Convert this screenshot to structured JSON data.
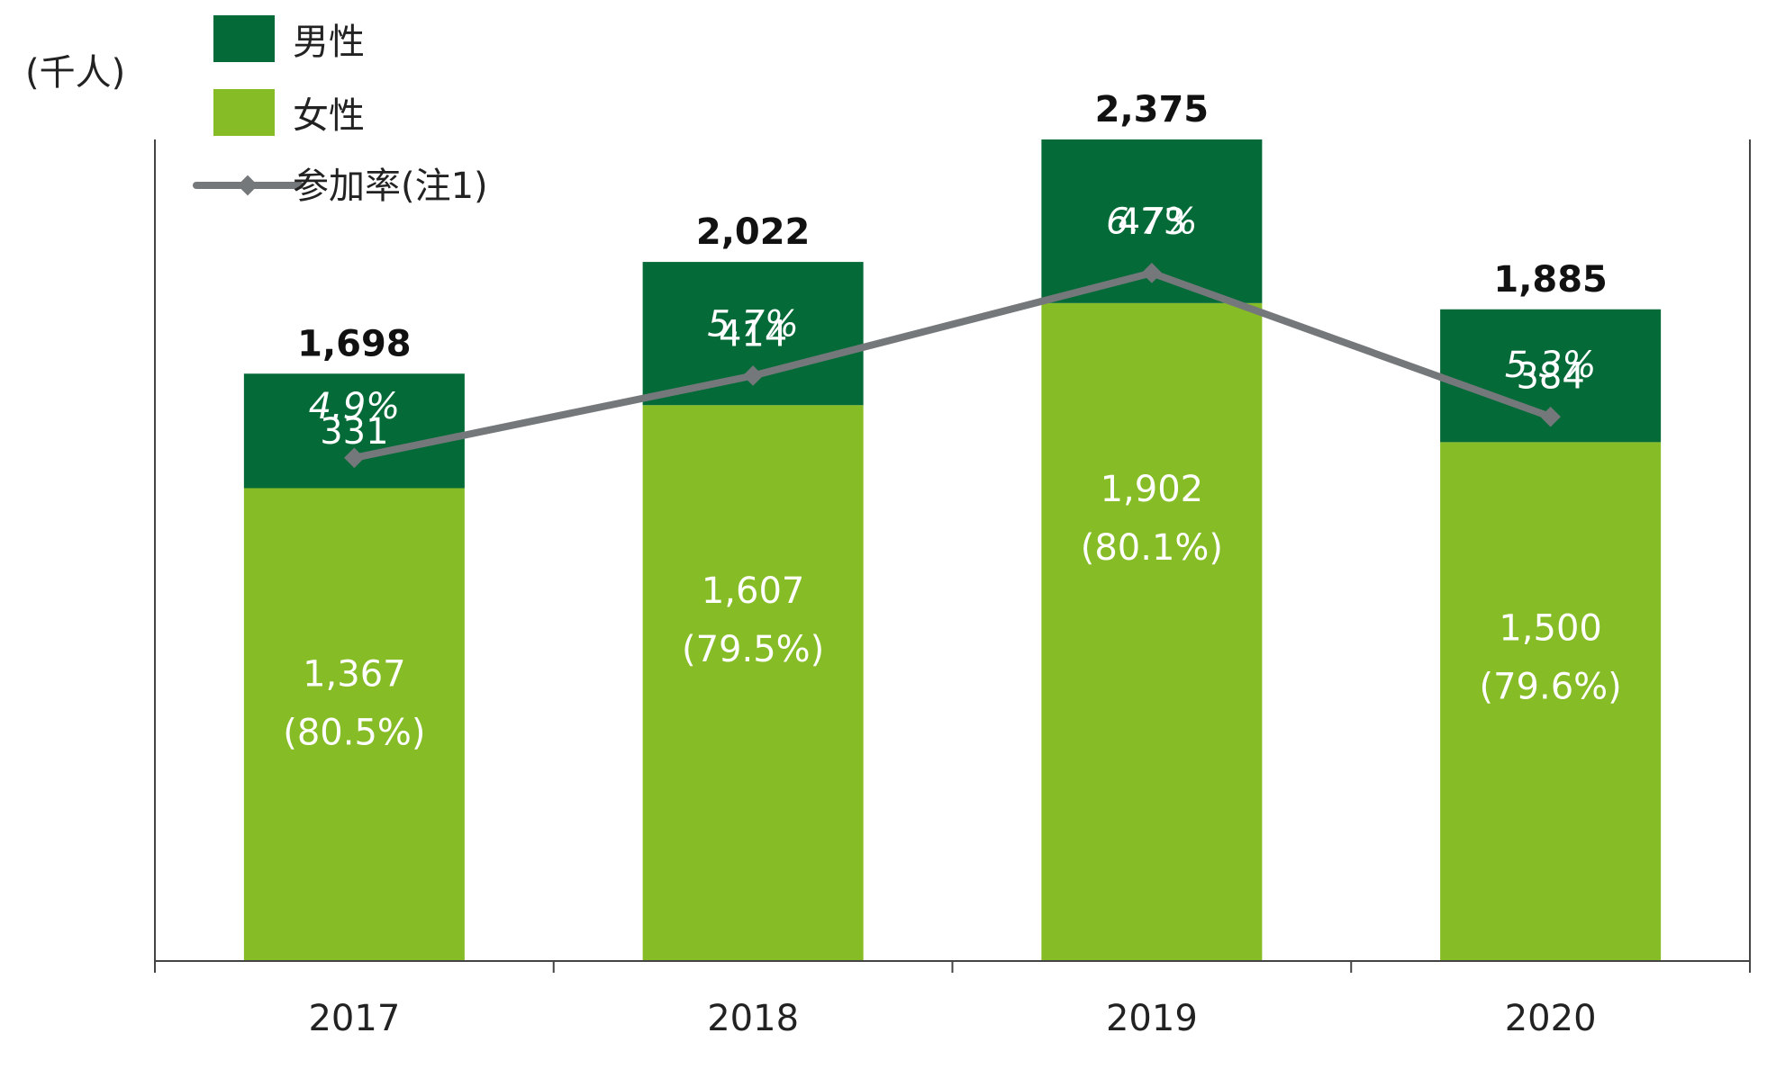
{
  "chart_data": {
    "type": "bar",
    "stacked": true,
    "unit_label": "(千人)",
    "categories": [
      "2017",
      "2018",
      "2019",
      "2020"
    ],
    "series": [
      {
        "name": "女性",
        "role": "bar",
        "color": "#86bc25",
        "values": [
          1367,
          1607,
          1902,
          1500
        ],
        "value_labels": [
          "1,367",
          "1,607",
          "1,902",
          "1,500"
        ],
        "share_labels": [
          "(80.5%)",
          "(79.5%)",
          "(80.1%)",
          "(79.6%)"
        ]
      },
      {
        "name": "男性",
        "role": "bar",
        "color": "#046a38",
        "values": [
          331,
          414,
          473,
          384
        ],
        "value_labels": [
          "331",
          "414",
          "473",
          "384"
        ]
      },
      {
        "name": "参加率(注1)",
        "role": "line",
        "color": "#75787b",
        "values": [
          4.9,
          5.7,
          6.7,
          5.3
        ],
        "value_labels": [
          "4.9%",
          "5.7%",
          "6.7%",
          "5.3%"
        ]
      }
    ],
    "totals": [
      1698,
      2022,
      2375,
      1885
    ],
    "total_labels": [
      "1,698",
      "2,022",
      "2,375",
      "1,885"
    ],
    "ylim": [
      0,
      2375
    ],
    "y2lim": [
      0,
      8
    ],
    "legend_position": "top-left",
    "grid": false
  }
}
